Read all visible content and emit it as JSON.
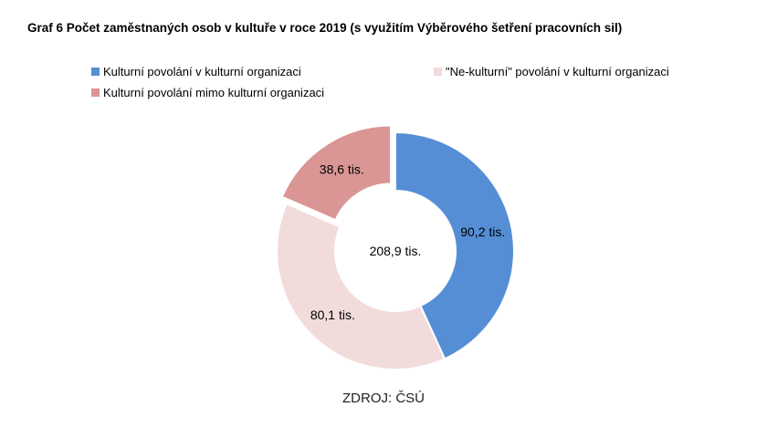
{
  "title": "Graf 6 Počet zaměstnaných osob v kultuře v roce 2019 (s využitím Výběrového šetření pracovních sil)",
  "source": "ZDROJ: ČSÚ",
  "chart_data": {
    "type": "pie",
    "variant": "donut",
    "center_label": "208,9 tis.",
    "series": [
      {
        "name": "Kulturní povolání v kulturní organizaci",
        "value": 90.2,
        "label": "90,2 tis.",
        "color": "#558ed5"
      },
      {
        "name": "\"Ne-kulturní\" povolání v kulturní organizaci",
        "value": 80.1,
        "label": "80,1 tis.",
        "color": "#f2dcdb"
      },
      {
        "name": "Kulturní povolání mimo kulturní organizaci",
        "value": 38.6,
        "label": "38,6 tis.",
        "color": "#d99694"
      }
    ],
    "exploded": [
      "Kulturní povolání mimo kulturní organizaci"
    ],
    "legend_position": "top"
  }
}
